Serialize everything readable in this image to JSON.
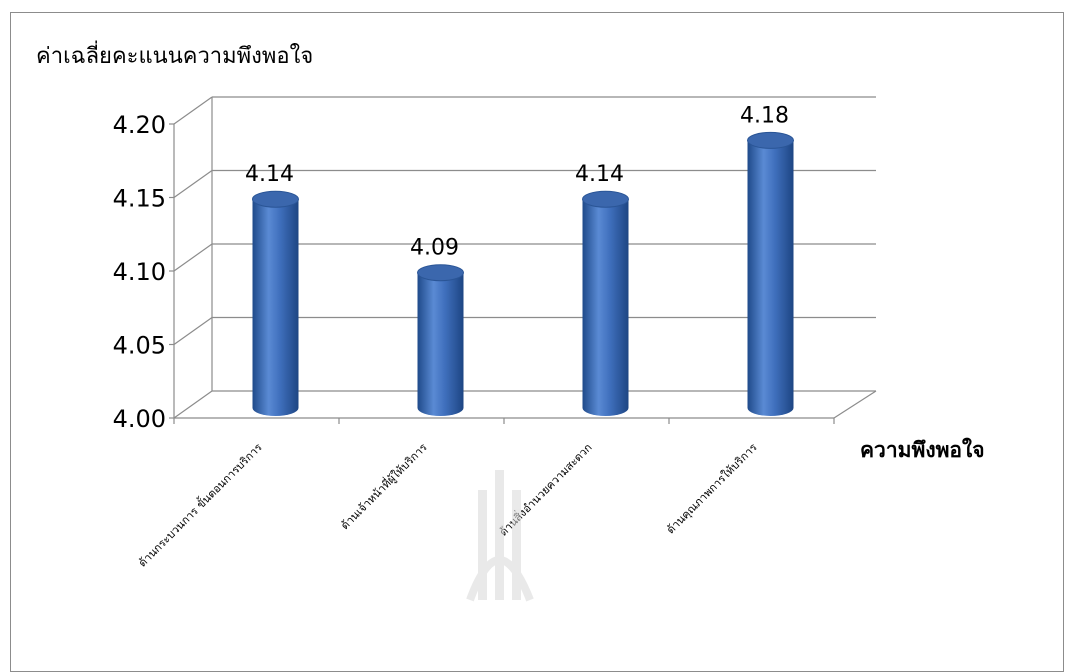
{
  "chart_data": {
    "type": "bar",
    "style": "3d-cylinder",
    "title": "",
    "ylabel": "ค่าเฉลี่ยคะแนนความพึงพอใจ",
    "xlabel": "ความพึงพอใจ",
    "categories": [
      "ด้านกระบวนการ ขั้นตอนการบริการ",
      "ด้านเจ้าหน้าที่ผู้ให้บริการ",
      "ด้านสิ่งอำนวยความสะดวก",
      "ด้านคุณภาพการให้บริการ"
    ],
    "values": [
      4.14,
      4.09,
      4.14,
      4.18
    ],
    "data_labels": [
      "4.14",
      "4.09",
      "4.14",
      "4.18"
    ],
    "ylim": [
      4.0,
      4.2
    ],
    "yticks": [
      "4.00",
      "4.05",
      "4.10",
      "4.15",
      "4.20"
    ],
    "grid": true,
    "legend": "none",
    "colors": {
      "bar": "#4a7ac4",
      "bar_dark": "#1f4a8a",
      "bar_top": "#3b67ad",
      "grid": "#8c8c8c",
      "watermark": "#d8d8d8"
    }
  }
}
